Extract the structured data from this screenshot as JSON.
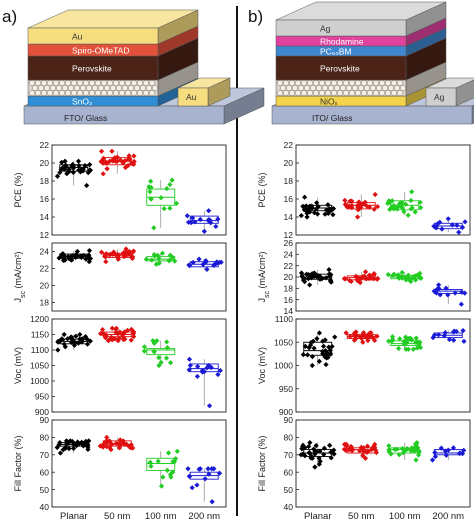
{
  "panels": [
    {
      "label": "a)",
      "stack": {
        "layers": [
          {
            "text": "Au",
            "color": "#f5dd80",
            "text_color": "#333333"
          },
          {
            "text": "Spiro-OMeTAD",
            "color": "#e2523a",
            "text_color": "#ffffff"
          },
          {
            "text": "Perovskite",
            "color": "#4b2417",
            "text_color": "#ffffff"
          },
          {
            "text": "",
            "color": "#d8d2c8",
            "text_color": "#333333"
          },
          {
            "text": "SnO₂",
            "color": "#2f8ed6",
            "text_color": "#ffffff"
          },
          {
            "text": "FTO/ Glass",
            "color": "#a7b3cf",
            "text_color": "#222222"
          }
        ],
        "contact": "Au",
        "contact_color": "#f5dd80"
      }
    },
    {
      "label": "b)",
      "stack": {
        "layers": [
          {
            "text": "Ag",
            "color": "#cfcfcf",
            "text_color": "#333333"
          },
          {
            "text": "Rhodamine",
            "color": "#e0429e",
            "text_color": "#ffffff"
          },
          {
            "text": "PC₆₀BM",
            "color": "#3f88cf",
            "text_color": "#ffffff"
          },
          {
            "text": "Perovskite",
            "color": "#4b2417",
            "text_color": "#ffffff"
          },
          {
            "text": "",
            "color": "#d8d2c8",
            "text_color": "#333333"
          },
          {
            "text": "NiOₓ",
            "color": "#f2d34b",
            "text_color": "#333333"
          },
          {
            "text": "ITO/ Glass",
            "color": "#a7b3cf",
            "text_color": "#222222"
          }
        ],
        "contact": "Ag",
        "contact_color": "#cfcfcf"
      }
    }
  ],
  "chart_data": [
    {
      "type": "scatter",
      "id": "a-pce",
      "panel": "a",
      "ylabel": "PCE (%)",
      "ylim": [
        12,
        22
      ],
      "yticks": [
        "12",
        "14",
        "16",
        "18",
        "20",
        "22"
      ],
      "yticks_values": [
        12,
        14,
        16,
        18,
        20,
        22
      ],
      "categories": [
        "Planar",
        "50 nm",
        "100 nm",
        "200 nm"
      ],
      "colors": [
        "#000000",
        "#e01010",
        "#22cc22",
        "#1a1ad6"
      ],
      "groups": [
        {
          "median": 19.5,
          "q1": 19.1,
          "q3": 19.8,
          "min": 17.5,
          "max": 20.2,
          "n": 32,
          "spread": 0.8
        },
        {
          "median": 20.2,
          "q1": 19.8,
          "q3": 20.6,
          "min": 18.8,
          "max": 21.3,
          "n": 32,
          "spread": 0.8
        },
        {
          "median": 16.2,
          "q1": 15.3,
          "q3": 17.1,
          "min": 12.8,
          "max": 18.1,
          "n": 14,
          "spread": 1.6
        },
        {
          "median": 13.6,
          "q1": 13.3,
          "q3": 14.1,
          "min": 12.4,
          "max": 14.7,
          "n": 14,
          "spread": 0.8
        }
      ]
    },
    {
      "type": "scatter",
      "id": "a-jsc",
      "panel": "a",
      "ylabel": "J_sc (mA/cm²)",
      "ylim": [
        17,
        25
      ],
      "yticks": [
        "18",
        "20",
        "22",
        "24"
      ],
      "yticks_values": [
        18,
        20,
        22,
        24
      ],
      "categories": [
        "Planar",
        "50 nm",
        "100 nm",
        "200 nm"
      ],
      "colors": [
        "#000000",
        "#e01010",
        "#22cc22",
        "#1a1ad6"
      ],
      "groups": [
        {
          "median": 23.4,
          "q1": 23.2,
          "q3": 23.7,
          "min": 22.8,
          "max": 24.1,
          "n": 32,
          "spread": 0.5
        },
        {
          "median": 23.6,
          "q1": 23.3,
          "q3": 23.8,
          "min": 22.8,
          "max": 24.3,
          "n": 32,
          "spread": 0.5
        },
        {
          "median": 23.1,
          "q1": 22.9,
          "q3": 23.4,
          "min": 22.5,
          "max": 23.8,
          "n": 14,
          "spread": 0.5
        },
        {
          "median": 22.5,
          "q1": 22.2,
          "q3": 22.8,
          "min": 21.9,
          "max": 23.1,
          "n": 14,
          "spread": 0.5
        }
      ]
    },
    {
      "type": "scatter",
      "id": "a-voc",
      "panel": "a",
      "ylabel": "Voc (mV)",
      "ylim": [
        900,
        1200
      ],
      "yticks": [
        "900",
        "950",
        "1000",
        "1050",
        "1100",
        "1150",
        "1200"
      ],
      "yticks_values": [
        900,
        950,
        1000,
        1050,
        1100,
        1150,
        1200
      ],
      "categories": [
        "Planar",
        "50 nm",
        "100 nm",
        "200 nm"
      ],
      "colors": [
        "#000000",
        "#e01010",
        "#22cc22",
        "#1a1ad6"
      ],
      "groups": [
        {
          "median": 1128,
          "q1": 1120,
          "q3": 1135,
          "min": 1100,
          "max": 1150,
          "n": 32,
          "spread": 22
        },
        {
          "median": 1150,
          "q1": 1143,
          "q3": 1158,
          "min": 1130,
          "max": 1170,
          "n": 32,
          "spread": 22
        },
        {
          "median": 1100,
          "q1": 1085,
          "q3": 1105,
          "min": 1050,
          "max": 1130,
          "n": 14,
          "spread": 40
        },
        {
          "median": 1040,
          "q1": 1030,
          "q3": 1055,
          "min": 920,
          "max": 1070,
          "n": 14,
          "spread": 30
        }
      ]
    },
    {
      "type": "scatter",
      "id": "a-ff",
      "panel": "a",
      "ylabel": "Fill Factor (%)",
      "ylim": [
        40,
        90
      ],
      "yticks": [
        "40",
        "50",
        "60",
        "70",
        "80",
        "90"
      ],
      "yticks_values": [
        40,
        50,
        60,
        70,
        80,
        90
      ],
      "categories": [
        "Planar",
        "50 nm",
        "100 nm",
        "200 nm"
      ],
      "colors": [
        "#000000",
        "#e01010",
        "#22cc22",
        "#1a1ad6"
      ],
      "groups": [
        {
          "median": 76,
          "q1": 75,
          "q3": 77,
          "min": 71,
          "max": 78,
          "n": 32,
          "spread": 3
        },
        {
          "median": 76,
          "q1": 75,
          "q3": 78,
          "min": 73,
          "max": 80,
          "n": 32,
          "spread": 3
        },
        {
          "median": 65,
          "q1": 61,
          "q3": 68,
          "min": 52,
          "max": 72,
          "n": 14,
          "spread": 8
        },
        {
          "median": 58,
          "q1": 56,
          "q3": 60,
          "min": 43,
          "max": 62,
          "n": 14,
          "spread": 5
        }
      ]
    },
    {
      "type": "scatter",
      "id": "b-pce",
      "panel": "b",
      "ylabel": "PCE (%)",
      "ylim": [
        12,
        22
      ],
      "yticks": [
        "12",
        "14",
        "16",
        "18",
        "20",
        "22"
      ],
      "yticks_values": [
        12,
        14,
        16,
        18,
        20,
        22
      ],
      "categories": [
        "Planar",
        "50 nm",
        "100 nm",
        "200 nm"
      ],
      "colors": [
        "#000000",
        "#e01010",
        "#22cc22",
        "#1a1ad6"
      ],
      "groups": [
        {
          "median": 15.0,
          "q1": 14.7,
          "q3": 15.3,
          "min": 14.0,
          "max": 16.2,
          "n": 32,
          "spread": 0.7
        },
        {
          "median": 15.3,
          "q1": 14.9,
          "q3": 15.6,
          "min": 14.0,
          "max": 16.5,
          "n": 26,
          "spread": 0.8
        },
        {
          "median": 15.3,
          "q1": 14.8,
          "q3": 15.8,
          "min": 14.2,
          "max": 16.8,
          "n": 26,
          "spread": 0.8
        },
        {
          "median": 13.0,
          "q1": 12.7,
          "q3": 13.3,
          "min": 12.3,
          "max": 13.8,
          "n": 12,
          "spread": 0.6
        }
      ]
    },
    {
      "type": "scatter",
      "id": "b-jsc",
      "panel": "b",
      "ylabel": "J_sc (mA/cm²)",
      "ylim": [
        14,
        26
      ],
      "yticks": [
        "14",
        "16",
        "18",
        "20",
        "22",
        "24",
        "26"
      ],
      "yticks_values": [
        14,
        16,
        18,
        20,
        22,
        24,
        26
      ],
      "categories": [
        "Planar",
        "50 nm",
        "100 nm",
        "200 nm"
      ],
      "colors": [
        "#000000",
        "#e01010",
        "#22cc22",
        "#1a1ad6"
      ],
      "groups": [
        {
          "median": 20.0,
          "q1": 19.6,
          "q3": 20.5,
          "min": 18.6,
          "max": 21.3,
          "n": 32,
          "spread": 0.9
        },
        {
          "median": 19.9,
          "q1": 19.5,
          "q3": 20.2,
          "min": 19.0,
          "max": 20.9,
          "n": 28,
          "spread": 0.7
        },
        {
          "median": 20.0,
          "q1": 19.7,
          "q3": 20.3,
          "min": 19.2,
          "max": 20.8,
          "n": 28,
          "spread": 0.6
        },
        {
          "median": 17.5,
          "q1": 17.1,
          "q3": 17.8,
          "min": 15.2,
          "max": 18.6,
          "n": 12,
          "spread": 0.9
        }
      ]
    },
    {
      "type": "scatter",
      "id": "b-voc",
      "panel": "b",
      "ylabel": "Voc (mV)",
      "ylim": [
        900,
        1100
      ],
      "yticks": [
        "900",
        "950",
        "1000",
        "1050",
        "1100"
      ],
      "yticks_values": [
        900,
        950,
        1000,
        1050,
        1100
      ],
      "categories": [
        "Planar",
        "50 nm",
        "100 nm",
        "200 nm"
      ],
      "colors": [
        "#000000",
        "#e01010",
        "#22cc22",
        "#1a1ad6"
      ],
      "groups": [
        {
          "median": 1032,
          "q1": 1022,
          "q3": 1050,
          "min": 1000,
          "max": 1070,
          "n": 32,
          "spread": 30
        },
        {
          "median": 1062,
          "q1": 1058,
          "q3": 1067,
          "min": 1050,
          "max": 1072,
          "n": 28,
          "spread": 12
        },
        {
          "median": 1047,
          "q1": 1043,
          "q3": 1053,
          "min": 1035,
          "max": 1062,
          "n": 28,
          "spread": 14
        },
        {
          "median": 1065,
          "q1": 1060,
          "q3": 1070,
          "min": 1052,
          "max": 1075,
          "n": 12,
          "spread": 12
        }
      ]
    },
    {
      "type": "scatter",
      "id": "b-ff",
      "panel": "b",
      "ylabel": "Fill Factor (%)",
      "ylim": [
        40,
        90
      ],
      "yticks": [
        "40",
        "50",
        "60",
        "70",
        "80",
        "90"
      ],
      "yticks_values": [
        40,
        50,
        60,
        70,
        80,
        90
      ],
      "categories": [
        "Planar",
        "50 nm",
        "100 nm",
        "200 nm"
      ],
      "colors": [
        "#000000",
        "#e01010",
        "#22cc22",
        "#1a1ad6"
      ],
      "groups": [
        {
          "median": 71,
          "q1": 69,
          "q3": 73,
          "min": 63,
          "max": 77,
          "n": 32,
          "spread": 5
        },
        {
          "median": 73,
          "q1": 71,
          "q3": 74,
          "min": 68,
          "max": 76,
          "n": 28,
          "spread": 3
        },
        {
          "median": 73,
          "q1": 71,
          "q3": 74,
          "min": 67,
          "max": 77,
          "n": 28,
          "spread": 3
        },
        {
          "median": 71,
          "q1": 70,
          "q3": 73,
          "min": 67,
          "max": 74,
          "n": 12,
          "spread": 3
        }
      ]
    }
  ]
}
